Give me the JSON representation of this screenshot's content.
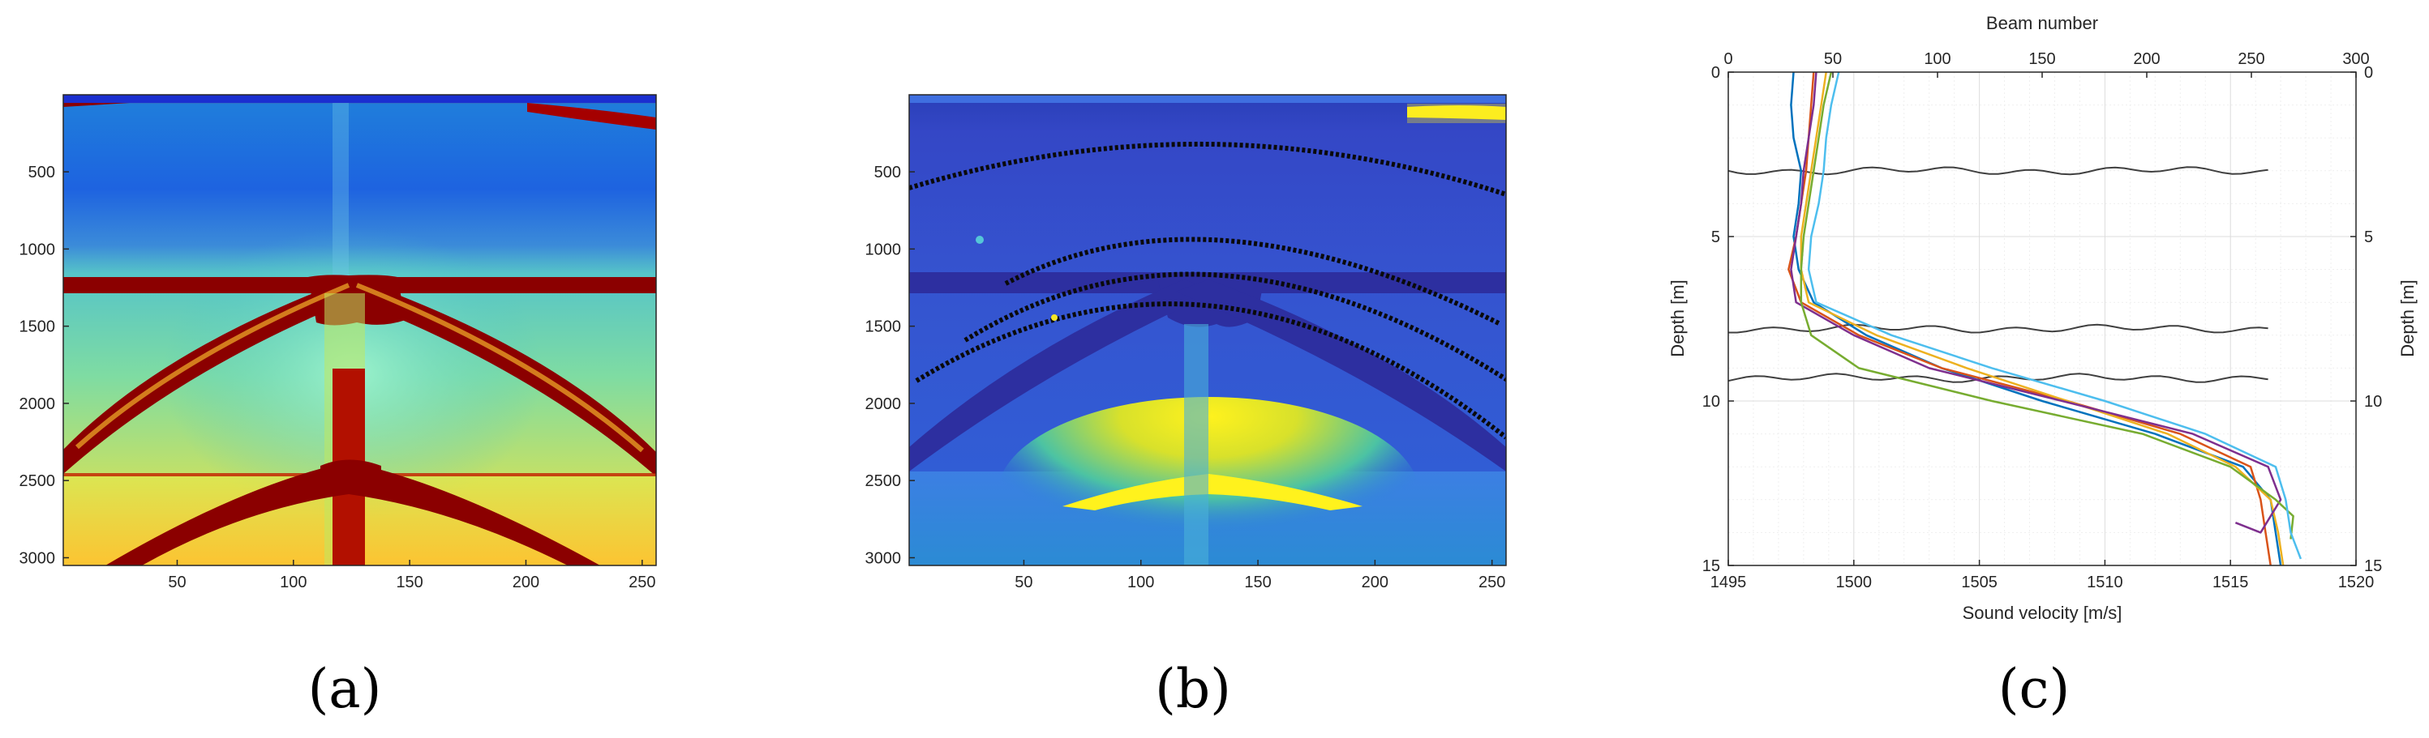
{
  "chart_data": [
    {
      "id": "a",
      "type": "heatmap",
      "panel_label": "(a)",
      "colormap": "jet",
      "xlim": [
        1,
        256
      ],
      "ylim": [
        3050,
        1
      ],
      "x_ticks": [
        50,
        100,
        150,
        200,
        250
      ],
      "y_ticks": [
        500,
        1000,
        1500,
        2000,
        2500,
        3000
      ]
    },
    {
      "id": "b",
      "type": "heatmap",
      "panel_label": "(b)",
      "colormap": "parula",
      "xlim": [
        1,
        256
      ],
      "ylim": [
        3050,
        1
      ],
      "x_ticks": [
        50,
        100,
        150,
        200,
        250
      ],
      "y_ticks": [
        500,
        1000,
        1500,
        2000,
        2500,
        3000
      ],
      "marker_color": "#000000"
    },
    {
      "id": "c",
      "type": "line",
      "panel_label": "(c)",
      "xlabel": "Sound velocity [m/s]",
      "x2label": "Beam number",
      "ylabel": "Depth [m]",
      "y2label": "Depth [m]",
      "xlim": [
        1495,
        1520
      ],
      "x2lim": [
        0,
        300
      ],
      "ylim": [
        15,
        0
      ],
      "x_ticks": [
        1495,
        1500,
        1505,
        1510,
        1515,
        1520
      ],
      "x2_ticks": [
        0,
        50,
        100,
        150,
        200,
        250,
        300
      ],
      "y_ticks": [
        0,
        5,
        10,
        15
      ],
      "grid": true,
      "series": [
        {
          "color": "#0072BD",
          "x": [
            1497.6,
            1497.5,
            1497.6,
            1497.9,
            1497.8,
            1497.6,
            1497.8,
            1498.4,
            1500.5,
            1503.5,
            1507.5,
            1512,
            1515.5,
            1516.6,
            1516.8,
            1517.0
          ],
          "y": [
            0,
            1,
            2,
            3,
            4,
            5,
            6,
            7,
            8,
            9,
            10,
            11,
            12,
            13,
            14,
            15
          ]
        },
        {
          "color": "#D95319",
          "x": [
            1498.4,
            1498.3,
            1498.2,
            1498.1,
            1497.9,
            1497.7,
            1497.4,
            1497.9,
            1500.2,
            1503.5,
            1508.5,
            1513,
            1515.8,
            1516.2,
            1516.4,
            1516.6
          ],
          "y": [
            0,
            1,
            2,
            3,
            4,
            5,
            6,
            7,
            8,
            9,
            10,
            11,
            12,
            13,
            14,
            15
          ]
        },
        {
          "color": "#EDB120",
          "x": [
            1498.9,
            1498.7,
            1498.5,
            1498.3,
            1498.1,
            1497.9,
            1497.9,
            1498.2,
            1500.9,
            1504.5,
            1508.5,
            1512.5,
            1515.2,
            1516.6,
            1516.9,
            1517.1
          ],
          "y": [
            0,
            1,
            2,
            3,
            4,
            5,
            6,
            7,
            8,
            9,
            10,
            11,
            12,
            13,
            14,
            15
          ]
        },
        {
          "color": "#7E2F8E",
          "x": [
            1498.5,
            1498.4,
            1498.2,
            1498.0,
            1497.9,
            1497.7,
            1497.5,
            1497.7,
            1500.0,
            1503.0,
            1508.3,
            1513.5,
            1516.5,
            1517.0,
            1516.2,
            1515.2
          ],
          "y": [
            0,
            1,
            2,
            3,
            4,
            5,
            6,
            7,
            8,
            9,
            10,
            11,
            12,
            13,
            14,
            13.7
          ]
        },
        {
          "color": "#77AC30",
          "x": [
            1499.1,
            1498.8,
            1498.6,
            1498.4,
            1498.2,
            1498.0,
            1497.9,
            1497.9,
            1498.3,
            1500.2,
            1505.5,
            1511.5,
            1515.0,
            1516.8,
            1517.5,
            1517.4
          ],
          "y": [
            0,
            1,
            2,
            3,
            4,
            5,
            6,
            7,
            8,
            9,
            10,
            11,
            12,
            13,
            13.5,
            14.2
          ]
        },
        {
          "color": "#4DBEEE",
          "x": [
            1499.4,
            1499.1,
            1498.9,
            1498.8,
            1498.6,
            1498.3,
            1498.2,
            1498.5,
            1501.5,
            1505.5,
            1510.0,
            1514.0,
            1516.8,
            1517.2,
            1517.4,
            1517.8
          ],
          "y": [
            0,
            1,
            2,
            3,
            4,
            5,
            6,
            7,
            8,
            9,
            10,
            11,
            12,
            13,
            14,
            14.8
          ]
        }
      ],
      "beam_profiles": {
        "color": "#404040",
        "x": [
          0,
          258
        ],
        "depths": [
          3.0,
          7.8,
          9.3
        ]
      }
    }
  ]
}
